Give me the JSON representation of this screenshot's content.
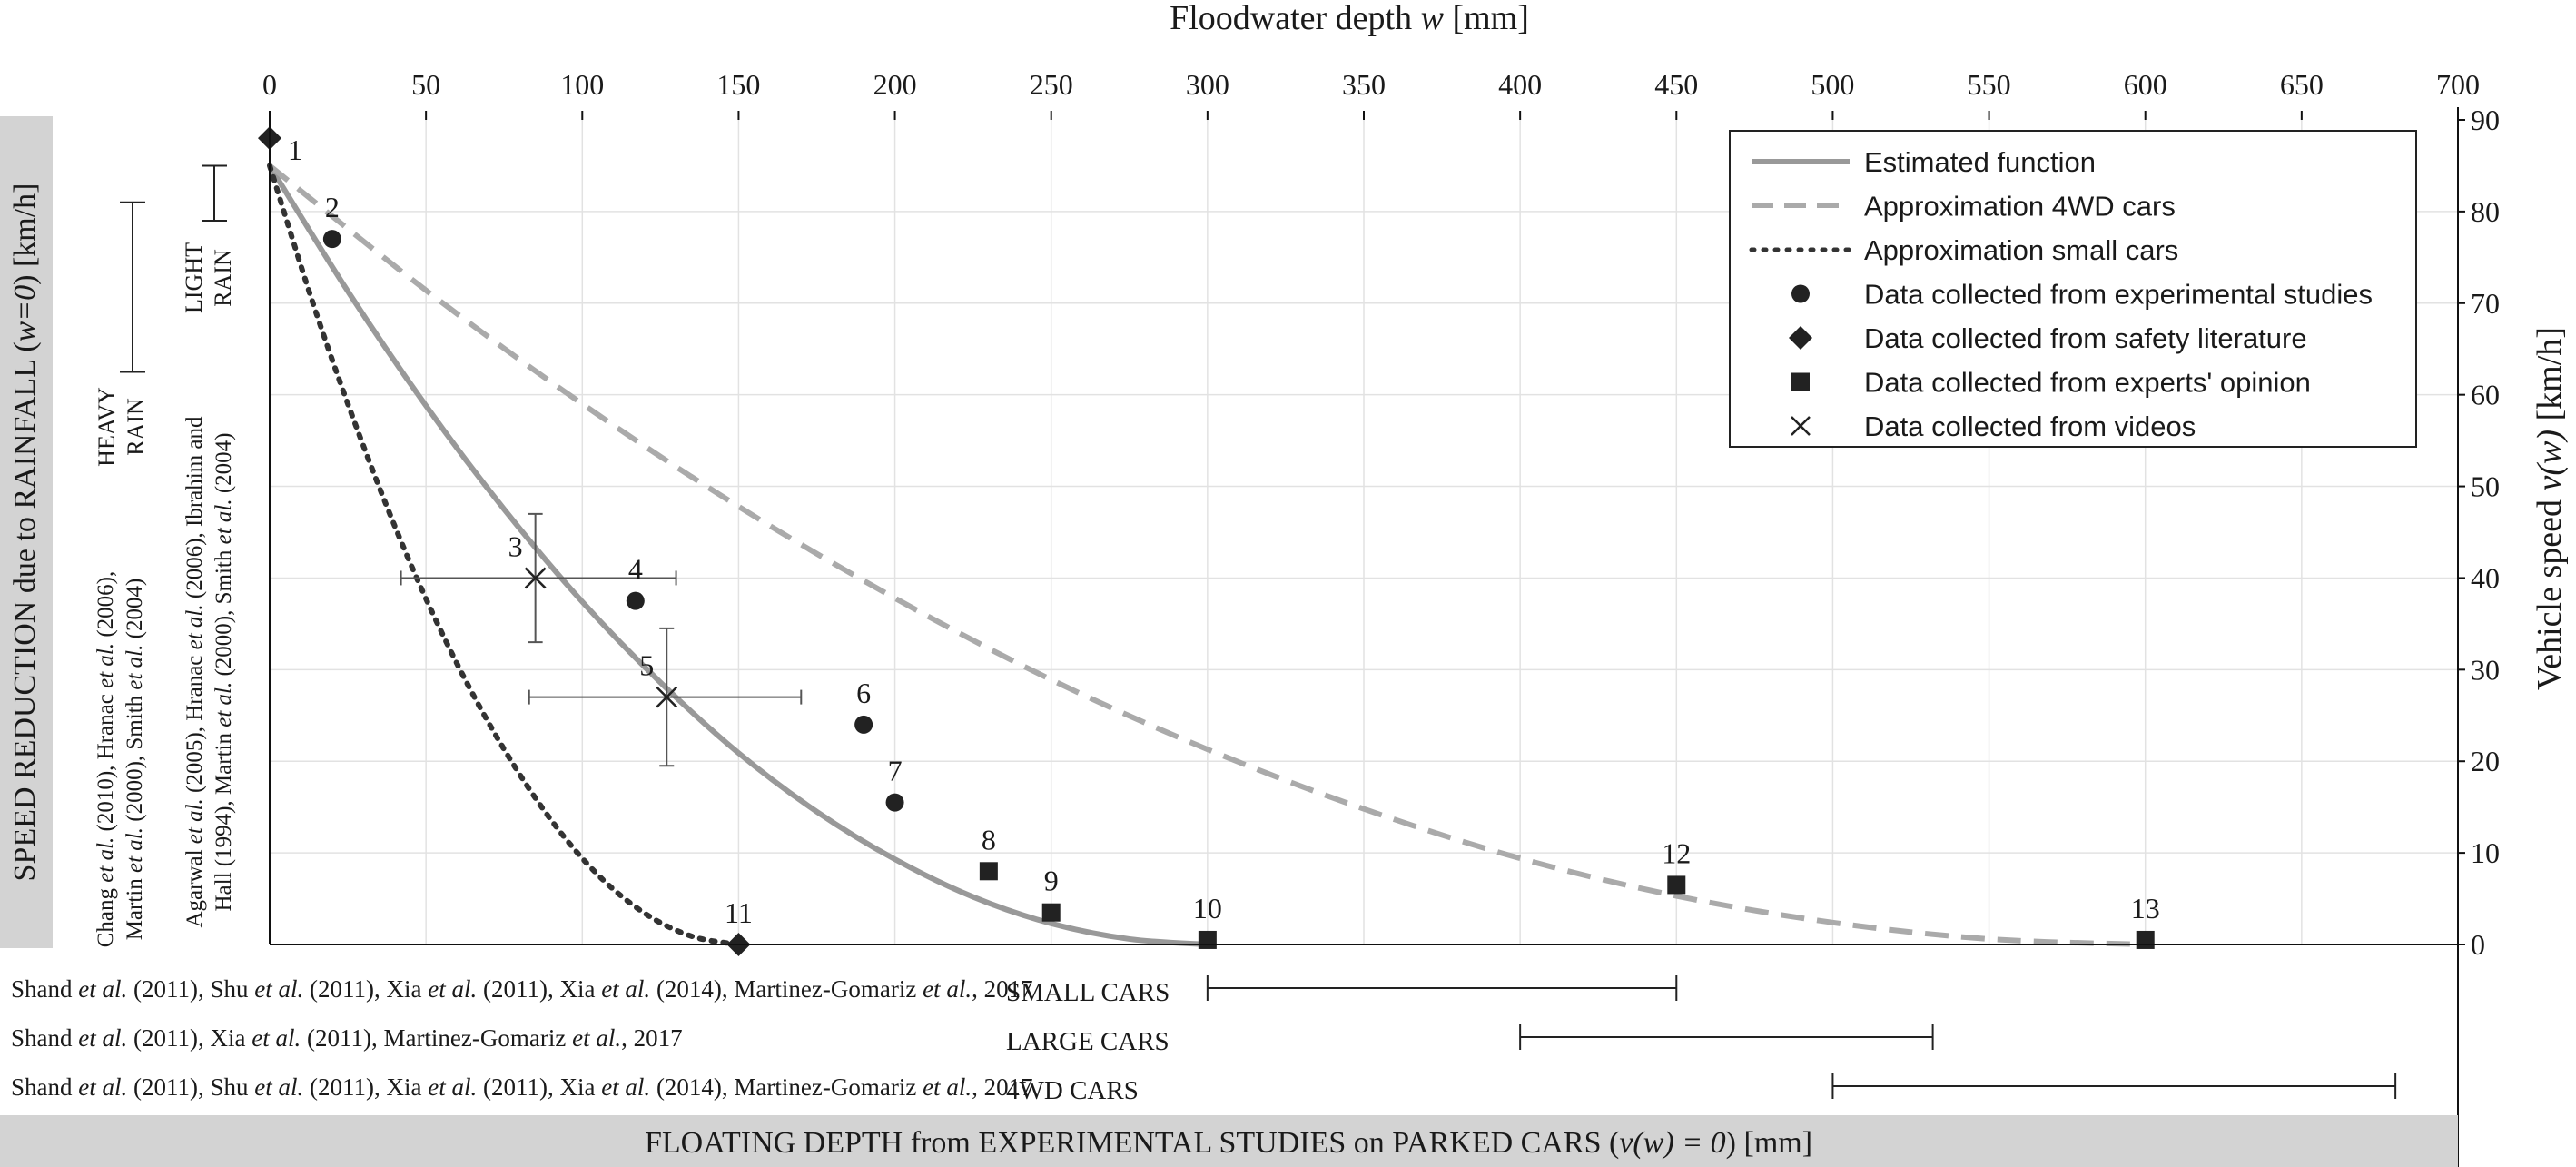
{
  "chart_data": {
    "type": "line",
    "top_axis": {
      "label_prefix": "Floodwater depth ",
      "label_var": "w",
      "label_suffix": " [mm]",
      "range": [
        0,
        700
      ],
      "ticks": [
        "0",
        "50",
        "100",
        "150",
        "200",
        "250",
        "300",
        "350",
        "400",
        "450",
        "500",
        "550",
        "600",
        "650",
        "700"
      ]
    },
    "right_axis": {
      "label_prefix": "Vehicle speed ",
      "label_var": "v(w)",
      "label_suffix": " [km/h]",
      "range": [
        0,
        90
      ],
      "ticks": [
        "0",
        "10",
        "20",
        "30",
        "40",
        "50",
        "60",
        "70",
        "80",
        "90"
      ]
    },
    "grid": true,
    "legend_position": "top-right",
    "series": [
      {
        "name": "Estimated function",
        "style": "solid",
        "color": "#999999",
        "x": [
          0,
          25,
          50,
          75,
          100,
          125,
          150,
          175,
          200,
          225,
          250,
          275,
          300
        ],
        "y": [
          85.0,
          71.3,
          58.8,
          47.5,
          37.4,
          28.6,
          20.9,
          14.5,
          9.3,
          5.2,
          2.3,
          0.6,
          0.0
        ]
      },
      {
        "name": "Approximation 4WD cars",
        "style": "dashed",
        "color": "#aaaaaa",
        "x": [
          0,
          50,
          100,
          150,
          200,
          250,
          300,
          350,
          400,
          450,
          500,
          550,
          600
        ],
        "y": [
          85.0,
          71.4,
          59.0,
          47.8,
          37.8,
          28.9,
          21.3,
          14.8,
          9.4,
          5.3,
          2.4,
          0.6,
          0.0
        ]
      },
      {
        "name": "Approximation small cars",
        "style": "dotted",
        "color": "#333333",
        "x": [
          0,
          15,
          30,
          45,
          60,
          75,
          90,
          105,
          120,
          135,
          150
        ],
        "y": [
          85.0,
          68.8,
          54.4,
          41.6,
          30.6,
          21.3,
          13.6,
          7.6,
          3.4,
          0.9,
          0.0
        ]
      }
    ],
    "points": [
      {
        "label": "1",
        "kind": "diamond",
        "x": 0,
        "y": 88
      },
      {
        "label": "2",
        "kind": "circle",
        "x": 20,
        "y": 77
      },
      {
        "label": "3",
        "kind": "cross",
        "x": 85,
        "y": 40,
        "xerr": [
          42,
          130
        ],
        "yerr": [
          33,
          47
        ]
      },
      {
        "label": "4",
        "kind": "circle",
        "x": 117,
        "y": 37.5
      },
      {
        "label": "5",
        "kind": "cross",
        "x": 127,
        "y": 27,
        "xerr": [
          83,
          170
        ],
        "yerr": [
          19.5,
          34.5
        ]
      },
      {
        "label": "6",
        "kind": "circle",
        "x": 190,
        "y": 24
      },
      {
        "label": "7",
        "kind": "circle",
        "x": 200,
        "y": 15.5
      },
      {
        "label": "8",
        "kind": "square",
        "x": 230,
        "y": 8
      },
      {
        "label": "9",
        "kind": "square",
        "x": 250,
        "y": 3.5
      },
      {
        "label": "10",
        "kind": "square",
        "x": 300,
        "y": 0.5
      },
      {
        "label": "11",
        "kind": "diamond",
        "x": 150,
        "y": 0
      },
      {
        "label": "12",
        "kind": "square",
        "x": 450,
        "y": 6.5
      },
      {
        "label": "13",
        "kind": "square",
        "x": 600,
        "y": 0.5
      }
    ],
    "legend": [
      {
        "label": "Estimated function",
        "symbol": "solid"
      },
      {
        "label": "Approximation 4WD cars",
        "symbol": "dashed"
      },
      {
        "label": "Approximation small cars",
        "symbol": "dotted"
      },
      {
        "label": "Data collected from experimental studies",
        "symbol": "circle"
      },
      {
        "label": "Data collected from safety literature",
        "symbol": "diamond"
      },
      {
        "label": "Data collected from experts' opinion",
        "symbol": "square"
      },
      {
        "label": "Data collected from videos",
        "symbol": "cross"
      }
    ],
    "rainfall_panel": {
      "title_a": "SPEED REDUCTION due to RAINFALL (",
      "title_var": "w=0",
      "title_b": ") [km/h]",
      "light_rain": {
        "label_line1": "LIGHT",
        "label_line2": "RAIN",
        "range": [
          79,
          85
        ]
      },
      "heavy_rain": {
        "label_line1": "HEAVY",
        "label_line2": "RAIN",
        "range": [
          62.5,
          81
        ]
      },
      "refs_light": {
        "line1": [
          "Agarwal ",
          "et al.",
          " (2005), Hranac ",
          "et al.",
          " (2006), Ibrahim and"
        ],
        "line2": [
          "Hall (1994), Martin ",
          "et al.",
          " (2000), Smith ",
          "et al.",
          " (2004)"
        ]
      },
      "refs_heavy": {
        "line1": [
          "Chang ",
          "et al.",
          " (2010), Hranac ",
          "et al.",
          " (2006),"
        ],
        "line2": [
          "Martin ",
          "et al.",
          " (2000), Smith ",
          "et al.",
          " (2004)"
        ]
      }
    },
    "floating_panel": {
      "title_a": "FLOATING DEPTH from EXPERIMENTAL STUDIES on PARKED CARS (",
      "title_var": "v(w) = 0",
      "title_b": ") [mm]",
      "rows": [
        {
          "refs": [
            "Shand ",
            "et al.",
            " (2011), Shu ",
            "et al.",
            " (2011), Xia ",
            "et al.",
            " (2011), Xia ",
            "et al.",
            " (2014), Martinez-Gomariz ",
            "et al.",
            ", 2017"
          ],
          "category": "SMALL CARS",
          "range": [
            300,
            450
          ]
        },
        {
          "refs": [
            "Shand ",
            "et al.",
            " (2011), Xia ",
            "et al.",
            " (2011), Martinez-Gomariz ",
            "et al.",
            ", 2017"
          ],
          "category": "LARGE CARS",
          "range": [
            400,
            532
          ]
        },
        {
          "refs": [
            "Shand ",
            "et al.",
            " (2011), Shu ",
            "et al.",
            " (2011), Xia ",
            "et al.",
            " (2011), Xia ",
            "et al.",
            " (2014), Martinez-Gomariz ",
            "et al.",
            ", 2017"
          ],
          "category": "4WD CARS",
          "range": [
            500,
            680
          ]
        }
      ]
    }
  }
}
